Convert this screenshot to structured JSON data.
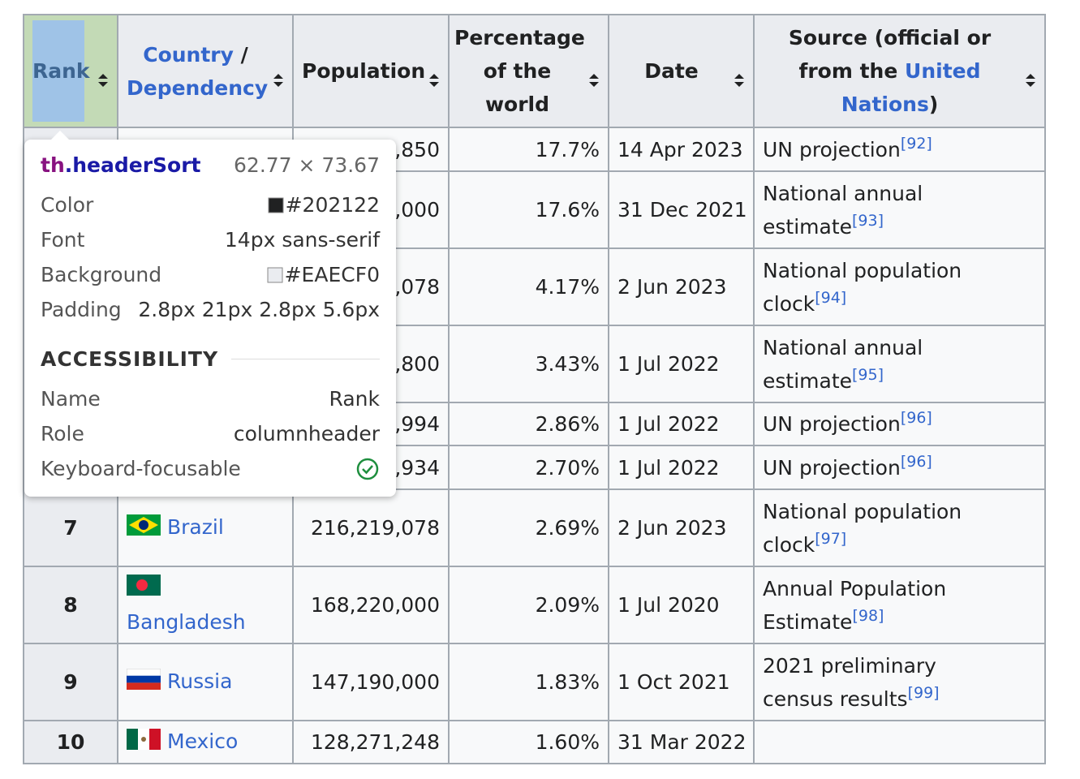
{
  "table": {
    "headers": {
      "rank": "Rank",
      "country": [
        "Country",
        "/",
        "Dependency"
      ],
      "population": "Population",
      "percentage": "Percentage of the world",
      "date": "Date",
      "source": [
        "Source (official or from the",
        "United Nations",
        ")"
      ]
    },
    "rows": [
      {
        "population": ",850",
        "percentage": "17.7%",
        "date": "14 Apr 2023",
        "source": "UN projection",
        "ref": "[92]"
      },
      {
        "population": ",000",
        "percentage": "17.6%",
        "date": "31 Dec 2021",
        "source": "National annual estimate",
        "ref": "[93]"
      },
      {
        "population": ",078",
        "percentage": "4.17%",
        "date": "2 Jun 2023",
        "source": "National population clock",
        "ref": "[94]"
      },
      {
        "population": ",800",
        "percentage": "3.43%",
        "date": "1 Jul 2022",
        "source": "National annual estimate",
        "ref": "[95]"
      },
      {
        "population": ",994",
        "percentage": "2.86%",
        "date": "1 Jul 2022",
        "source": "UN projection",
        "ref": "[96]"
      },
      {
        "population": ",934",
        "percentage": "2.70%",
        "date": "1 Jul 2022",
        "source": "UN projection",
        "ref": "[96]"
      },
      {
        "rank": "7",
        "country": "Brazil",
        "population": "216,219,078",
        "percentage": "2.69%",
        "date": "2 Jun 2023",
        "source": "National population clock",
        "ref": "[97]"
      },
      {
        "rank": "8",
        "country": "Bangladesh",
        "population": "168,220,000",
        "percentage": "2.09%",
        "date": "1 Jul 2020",
        "source": "Annual Population Estimate",
        "ref": "[98]"
      },
      {
        "rank": "9",
        "country": "Russia",
        "population": "147,190,000",
        "percentage": "1.83%",
        "date": "1 Oct 2021",
        "source": "2021 preliminary census results",
        "ref": "[99]"
      },
      {
        "rank": "10",
        "country": "Mexico",
        "population": "128,271,248",
        "percentage": "1.60%",
        "date": "31 Mar 2022"
      }
    ]
  },
  "tooltip": {
    "tag": "th",
    "class": ".headerSort",
    "size": "62.77 × 73.67",
    "properties": [
      {
        "label": "Color",
        "value": "#202122"
      },
      {
        "label": "Font",
        "value": "14px sans-serif"
      },
      {
        "label": "Background",
        "value": "#EAECF0"
      },
      {
        "label": "Padding",
        "value": "2.8px 21px 2.8px 5.6px"
      }
    ],
    "section": "ACCESSIBILITY",
    "accessibility": [
      {
        "label": "Name",
        "value": "Rank"
      },
      {
        "label": "Role",
        "value": "columnheader"
      },
      {
        "label": "Keyboard-focusable"
      }
    ]
  }
}
